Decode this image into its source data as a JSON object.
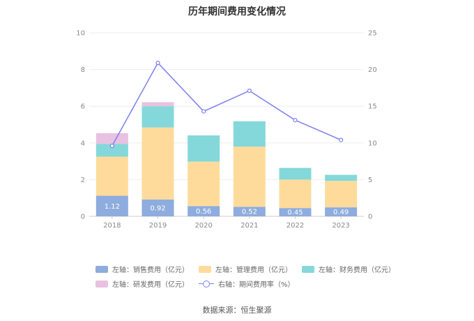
{
  "title": "历年期间费用变化情况",
  "source": "数据来源：恒生聚源",
  "chart_data": {
    "type": "bar",
    "categories": [
      "2018",
      "2019",
      "2020",
      "2021",
      "2022",
      "2023"
    ],
    "ylim_left": [
      0,
      10
    ],
    "ylim_right": [
      0,
      25
    ],
    "left_ticks": [
      "0",
      "2",
      "4",
      "6",
      "8",
      "10"
    ],
    "right_ticks": [
      "0",
      "5",
      "10",
      "15",
      "20",
      "25"
    ],
    "series": [
      {
        "name": "左轴：销售费用（亿元）",
        "color": "#8eacdd",
        "values": [
          1.12,
          0.92,
          0.56,
          0.52,
          0.45,
          0.49
        ],
        "labels": [
          "1.12",
          "0.92",
          "0.56",
          "0.52",
          "0.45",
          "0.49"
        ]
      },
      {
        "name": "左轴：管理费用（亿元）",
        "color": "#ffdb9b",
        "values": [
          2.13,
          3.92,
          2.42,
          3.28,
          1.55,
          1.44
        ]
      },
      {
        "name": "左轴：财务费用（亿元）",
        "color": "#84d8da",
        "values": [
          0.7,
          1.16,
          1.43,
          1.38,
          0.64,
          0.33
        ]
      },
      {
        "name": "左轴：研发费用（亿元）",
        "color": "#e8c2e0",
        "values": [
          0.58,
          0.22,
          0.0,
          0.0,
          0.0,
          0.0
        ]
      }
    ],
    "line": {
      "name": "右轴：期间费用率（%）",
      "color": "#7b7ff0",
      "values": [
        9.6,
        20.9,
        14.3,
        17.1,
        13.1,
        10.4
      ]
    }
  }
}
